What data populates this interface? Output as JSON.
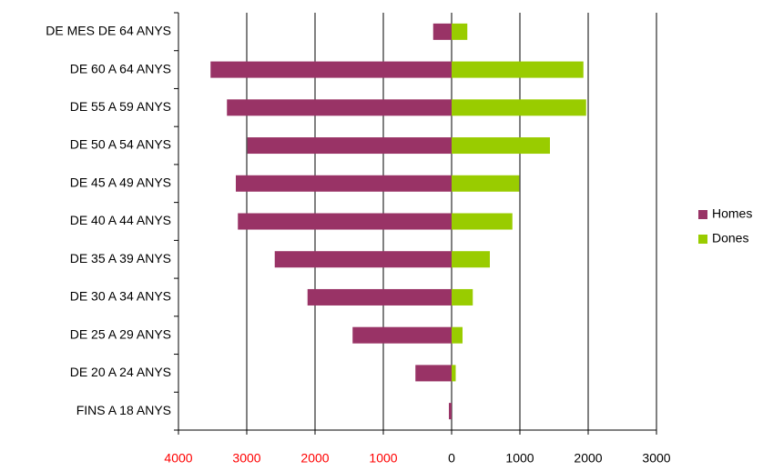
{
  "chart_data": {
    "type": "bar",
    "orientation": "horizontal",
    "categories": [
      "DE MES DE 64 ANYS",
      "DE 60 A 64 ANYS",
      "DE 55 A 59 ANYS",
      "DE 50 A 54 ANYS",
      "DE 45 A 49 ANYS",
      "DE 40 A 44 ANYS",
      "DE 35 A 39 ANYS",
      "DE 30 A 34 ANYS",
      "DE 25 A 29 ANYS",
      "DE 20 A 24 ANYS",
      "FINS A 18 ANYS"
    ],
    "series": [
      {
        "name": "Homes",
        "color": "#993366",
        "values": [
          -270,
          -3530,
          -3290,
          -2990,
          -3160,
          -3130,
          -2590,
          -2110,
          -1450,
          -530,
          -40
        ]
      },
      {
        "name": "Dones",
        "color": "#99cc00",
        "values": [
          230,
          1930,
          1970,
          1440,
          990,
          890,
          560,
          310,
          160,
          60,
          0
        ]
      }
    ],
    "xlim": [
      -4000,
      3000
    ],
    "xticks": [
      {
        "value": -4000,
        "label": "4000"
      },
      {
        "value": -3000,
        "label": "3000"
      },
      {
        "value": -2000,
        "label": "2000"
      },
      {
        "value": -1000,
        "label": "1000"
      },
      0,
      1000,
      2000,
      3000
    ],
    "negative_tick_color": "#ff0000",
    "grid": true,
    "legend": "right"
  }
}
